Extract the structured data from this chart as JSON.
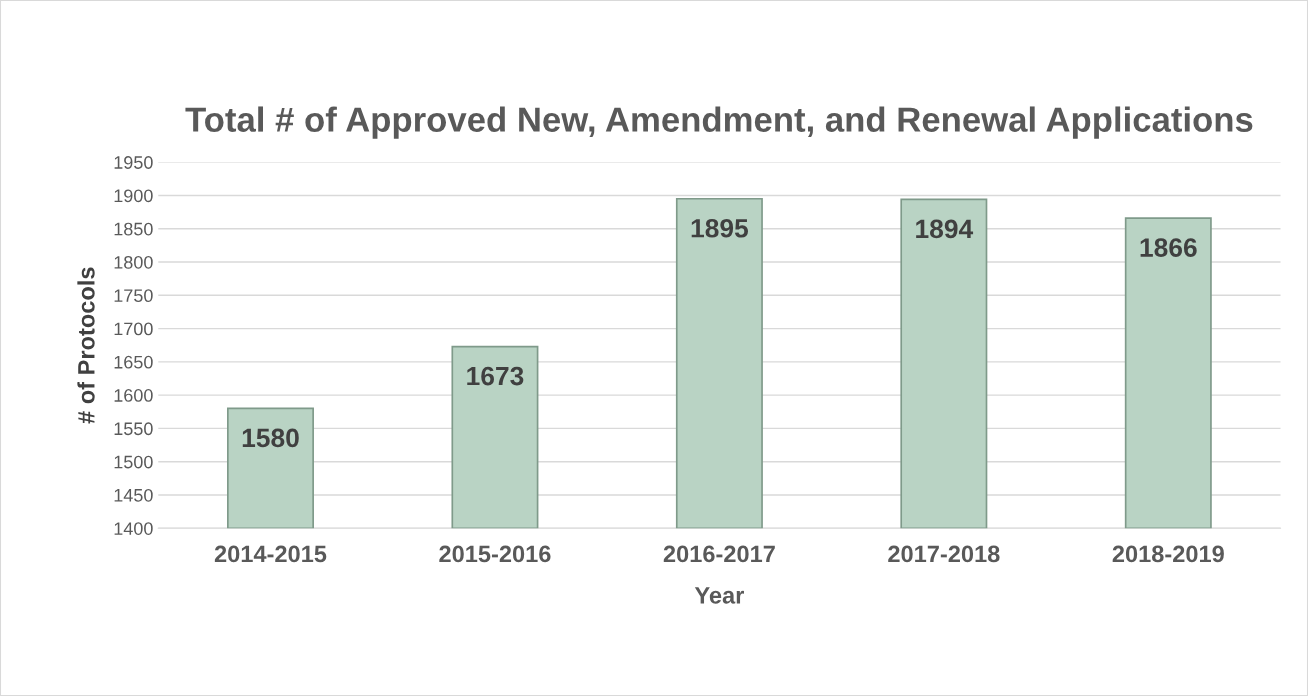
{
  "chart_data": {
    "type": "bar",
    "title": "Total # of Approved New, Amendment, and Renewal Applications",
    "xlabel": "Year",
    "ylabel": "# of Protocols",
    "categories": [
      "2014-2015",
      "2015-2016",
      "2016-2017",
      "2017-2018",
      "2018-2019"
    ],
    "values": [
      1580,
      1673,
      1895,
      1894,
      1866
    ],
    "color": "#b9d3c4",
    "ylim": [
      1400,
      1950
    ],
    "yticks": [
      1400,
      1450,
      1500,
      1550,
      1600,
      1650,
      1700,
      1750,
      1800,
      1850,
      1900,
      1950
    ],
    "grid": "y",
    "data_labels": true,
    "legend": false
  }
}
